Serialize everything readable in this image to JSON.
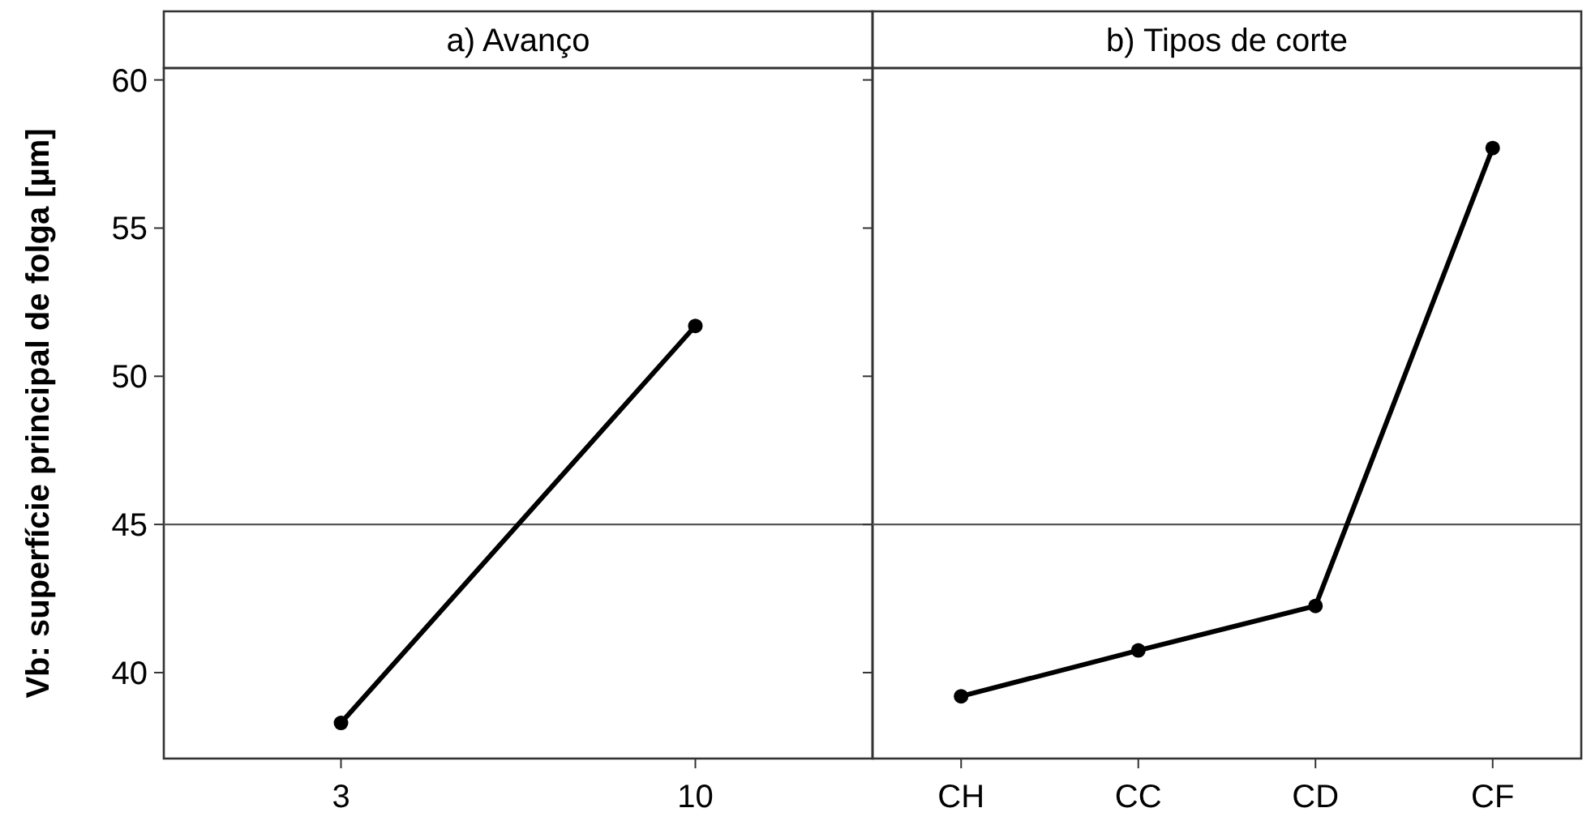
{
  "chart_data": [
    {
      "type": "line",
      "title": "a) Avanço",
      "ylabel": "Vb: superfície principal de folga [µm]",
      "categories": [
        "3",
        "10"
      ],
      "series": [
        {
          "color": "#000000",
          "values": [
            38.3,
            51.7
          ]
        }
      ],
      "ylim": [
        37.1,
        60.4
      ],
      "yticks": [
        40,
        45,
        50,
        55,
        60
      ],
      "ref_lines": [
        {
          "axis": "y",
          "value": 45
        }
      ],
      "marker": "circle"
    },
    {
      "type": "line",
      "title": "b) Tipos de corte",
      "categories": [
        "CH",
        "CC",
        "CD",
        "CF"
      ],
      "series": [
        {
          "color": "#000000",
          "values": [
            39.2,
            40.75,
            42.25,
            57.7
          ]
        }
      ],
      "ylim": [
        37.1,
        60.4
      ],
      "yticks": [
        40,
        45,
        50,
        55,
        60
      ],
      "ref_lines": [
        {
          "axis": "y",
          "value": 45
        }
      ],
      "marker": "circle",
      "tick_labels": "x"
    }
  ]
}
